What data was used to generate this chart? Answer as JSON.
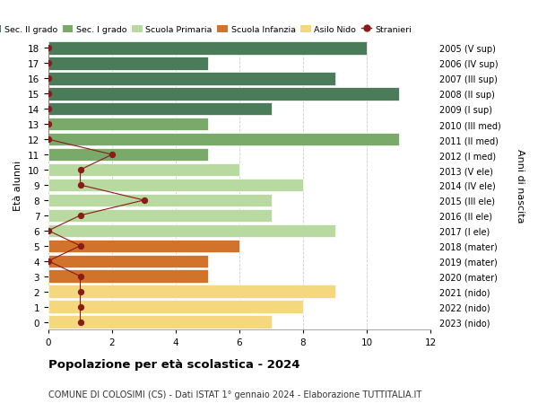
{
  "ages": [
    18,
    17,
    16,
    15,
    14,
    13,
    12,
    11,
    10,
    9,
    8,
    7,
    6,
    5,
    4,
    3,
    2,
    1,
    0
  ],
  "years_labels": [
    "2005 (V sup)",
    "2006 (IV sup)",
    "2007 (III sup)",
    "2008 (II sup)",
    "2009 (I sup)",
    "2010 (III med)",
    "2011 (II med)",
    "2012 (I med)",
    "2013 (V ele)",
    "2014 (IV ele)",
    "2015 (III ele)",
    "2016 (II ele)",
    "2017 (I ele)",
    "2018 (mater)",
    "2019 (mater)",
    "2020 (mater)",
    "2021 (nido)",
    "2022 (nido)",
    "2023 (nido)"
  ],
  "values": [
    10,
    5,
    9,
    11,
    7,
    5,
    11,
    5,
    6,
    8,
    7,
    7,
    9,
    6,
    5,
    5,
    9,
    8,
    7
  ],
  "bar_colors": [
    "#4a7c59",
    "#4a7c59",
    "#4a7c59",
    "#4a7c59",
    "#4a7c59",
    "#7aaa6a",
    "#7aaa6a",
    "#7aaa6a",
    "#b8d9a0",
    "#b8d9a0",
    "#b8d9a0",
    "#b8d9a0",
    "#b8d9a0",
    "#d2732c",
    "#d2732c",
    "#d2732c",
    "#f5d87e",
    "#f5d87e",
    "#f5d87e"
  ],
  "stranieri_values": [
    0,
    0,
    0,
    0,
    0,
    0,
    0,
    2,
    1,
    1,
    3,
    1,
    0,
    1,
    0,
    1,
    1,
    1,
    1
  ],
  "xlim": [
    0,
    12
  ],
  "xticks": [
    0,
    2,
    4,
    6,
    8,
    10,
    12
  ],
  "title": "Popolazione per età scolastica - 2024",
  "subtitle": "COMUNE DI COLOSIMI (CS) - Dati ISTAT 1° gennaio 2024 - Elaborazione TUTTITALIA.IT",
  "ylabel_left": "Età alunni",
  "ylabel_right": "Anni di nascita",
  "legend_items": [
    {
      "label": "Sec. II grado",
      "color": "#4a7c59"
    },
    {
      "label": "Sec. I grado",
      "color": "#7aaa6a"
    },
    {
      "label": "Scuola Primaria",
      "color": "#b8d9a0"
    },
    {
      "label": "Scuola Infanzia",
      "color": "#d2732c"
    },
    {
      "label": "Asilo Nido",
      "color": "#f5d87e"
    },
    {
      "label": "Stranieri",
      "color": "#8b1a1a"
    }
  ],
  "bg_color": "#ffffff",
  "grid_color": "#cccccc",
  "bar_edge_color": "white",
  "stranieri_line_color": "#8b1a1a",
  "stranieri_marker_color": "#8b1a1a"
}
